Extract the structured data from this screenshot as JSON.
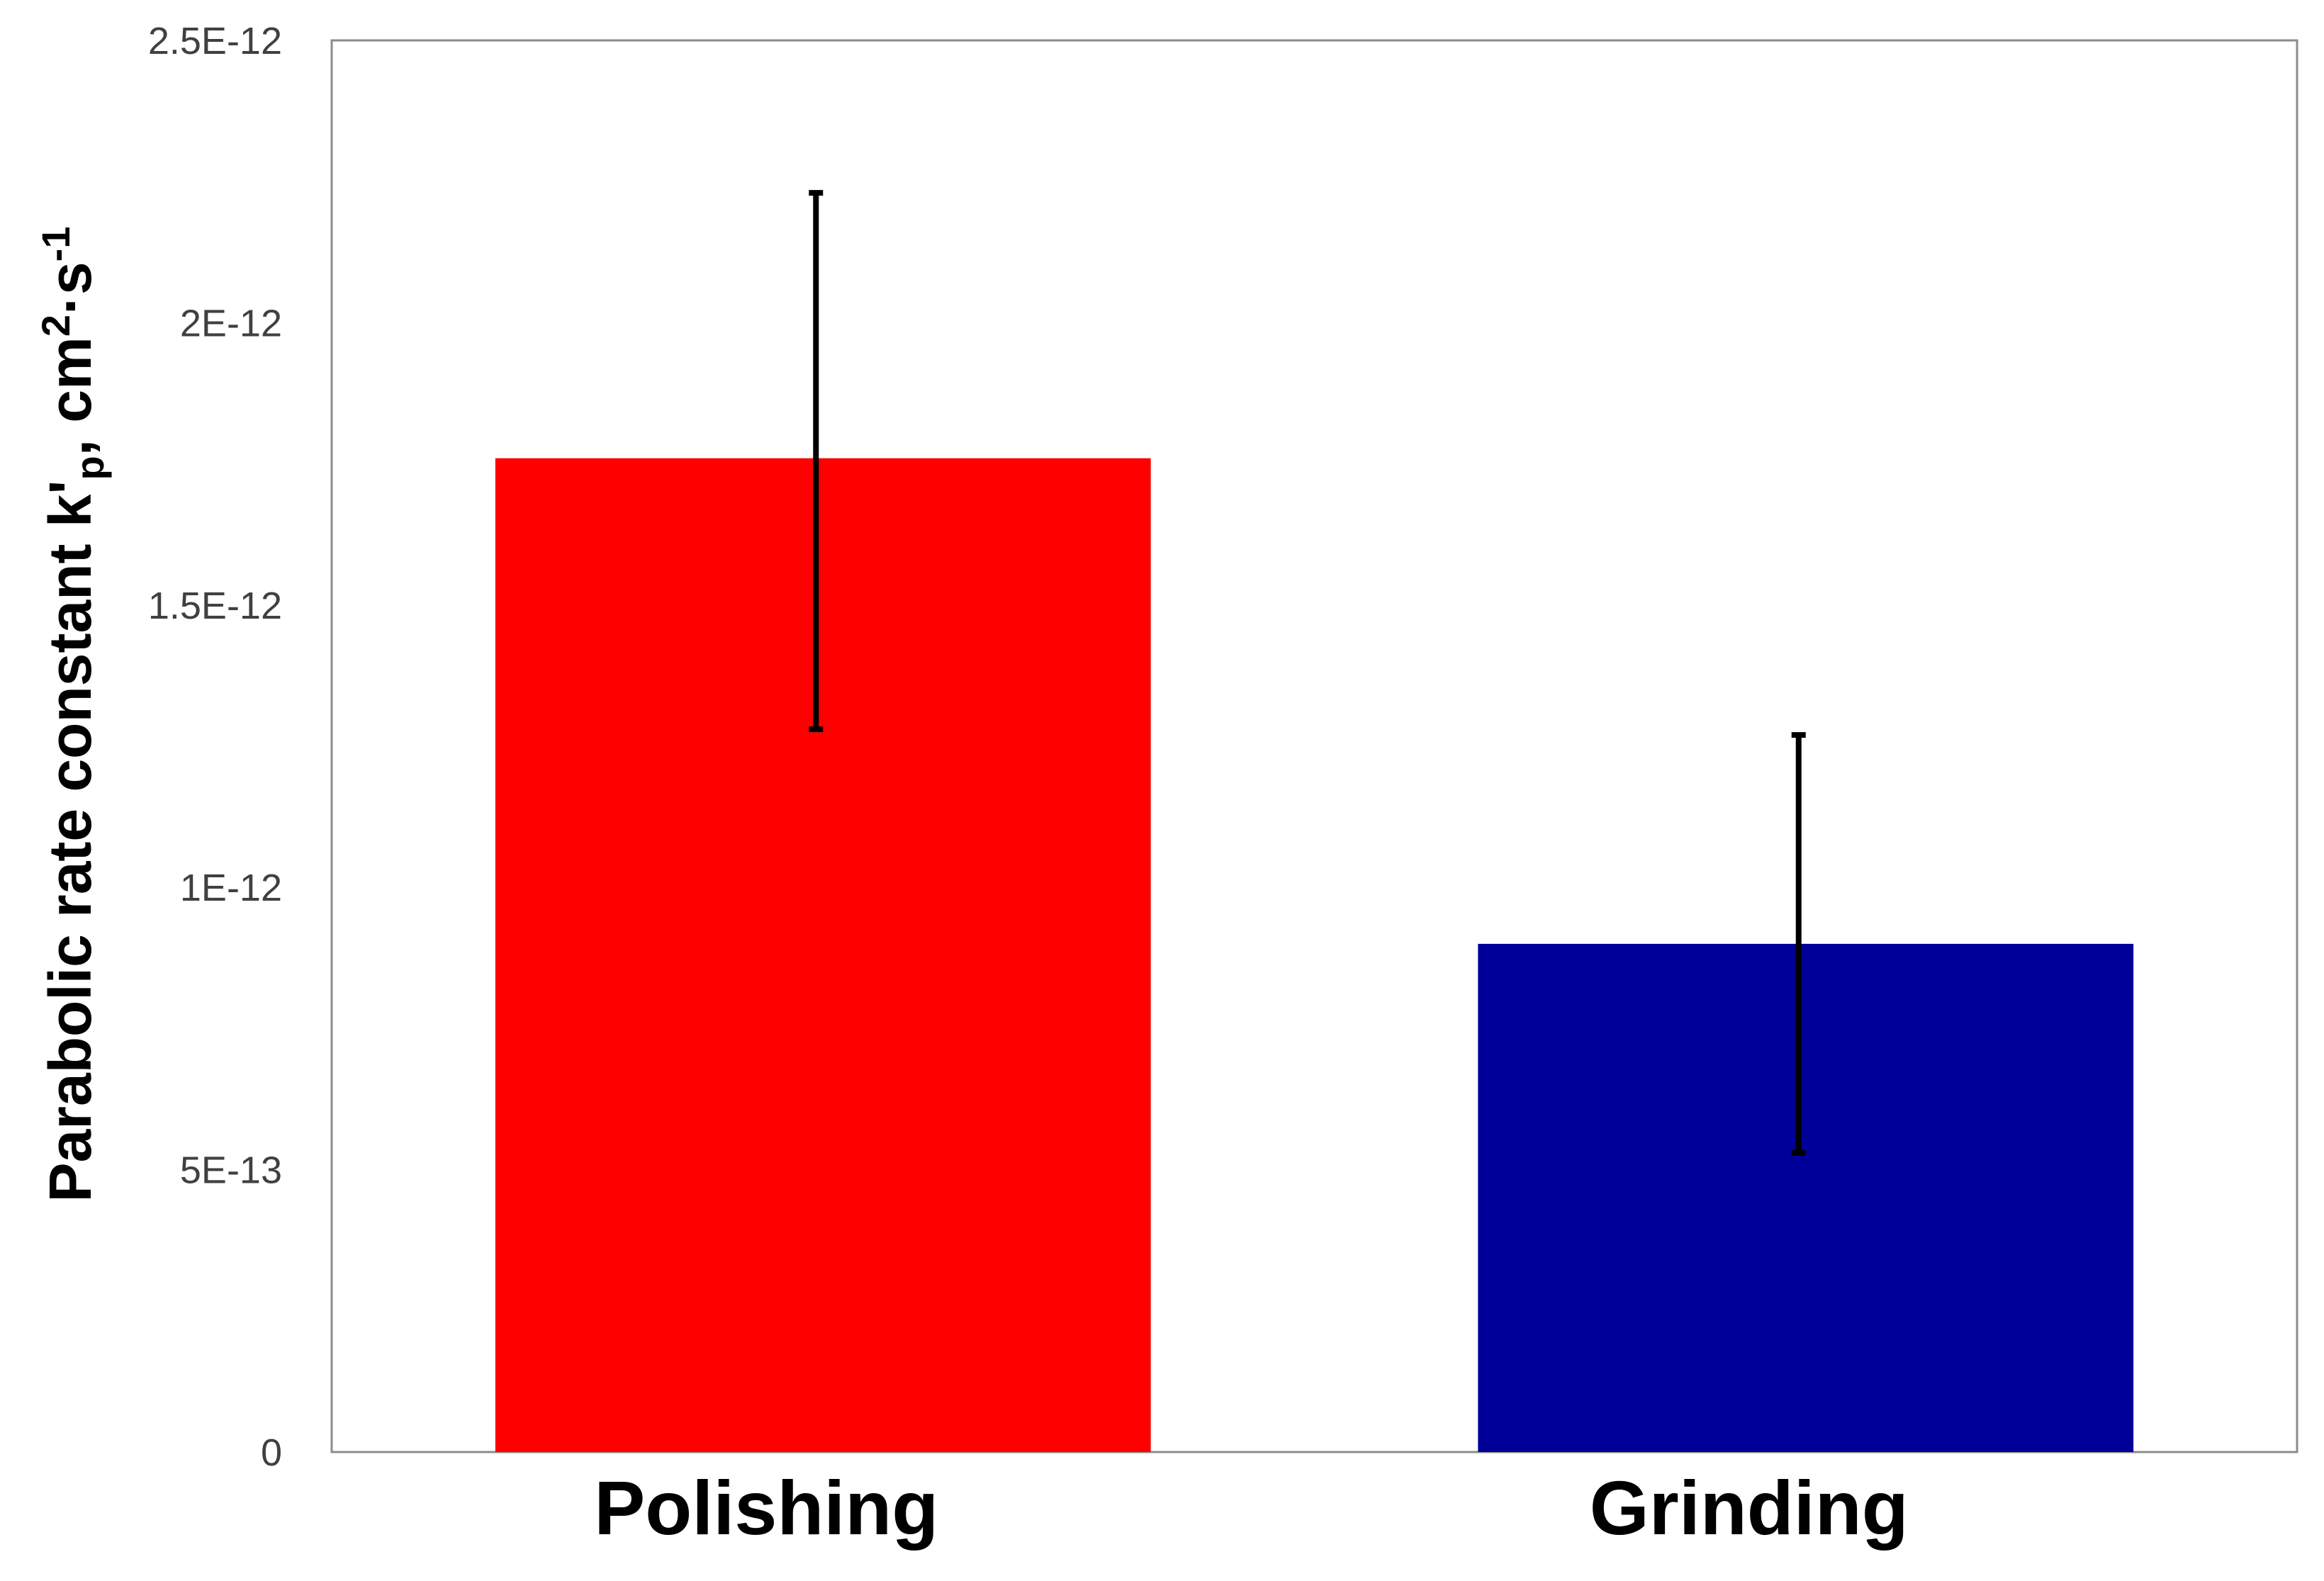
{
  "chart_data": {
    "type": "bar",
    "categories": [
      "Polishing",
      "Grinding"
    ],
    "values": [
      1.76e-12,
      9e-13
    ],
    "error_low": [
      1.28e-12,
      5.3e-13
    ],
    "error_high": [
      2.23e-12,
      1.27e-12
    ],
    "bar_colors": [
      "#ff0000",
      "#000099"
    ],
    "ylabel": {
      "main": "Parabolic rate constant k'",
      "sub": "p",
      "units": ", cm",
      "sup1": "2",
      "dot": "·s",
      "sup2": "-1"
    },
    "ylim": [
      0,
      2.5e-12
    ],
    "yticks": [
      {
        "value": 0,
        "label": "0"
      },
      {
        "value": 5e-13,
        "label": "5E-13"
      },
      {
        "value": 1e-12,
        "label": "1E-12"
      },
      {
        "value": 1.5e-12,
        "label": "1.5E-12"
      },
      {
        "value": 2e-12,
        "label": "2E-12"
      },
      {
        "value": 2.5e-12,
        "label": "2.5E-12"
      }
    ],
    "grid": false,
    "legend": "none"
  }
}
